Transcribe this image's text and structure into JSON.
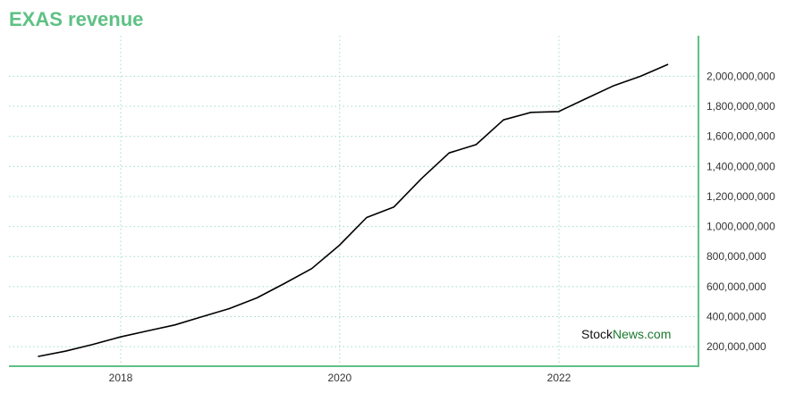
{
  "colors": {
    "accent": "#5ec184",
    "grid": "#9fdcc7",
    "line": "#000000",
    "watermark_dark": "#111111",
    "watermark_green": "#1a7a2e"
  },
  "watermark": {
    "part1": "Stock",
    "part2": "News",
    "part3": ".com"
  },
  "chart_data": {
    "type": "line",
    "title": "EXAS revenue",
    "xlabel": "",
    "ylabel": "",
    "x_ticks": [
      "2018",
      "2020",
      "2022"
    ],
    "y_ticks": [
      200000000,
      400000000,
      600000000,
      800000000,
      1000000000,
      1200000000,
      1400000000,
      1600000000,
      1800000000,
      2000000000
    ],
    "y_tick_labels": [
      "200,000,000",
      "400,000,000",
      "600,000,000",
      "800,000,000",
      "1,000,000,000",
      "1,200,000,000",
      "1,400,000,000",
      "1,600,000,000",
      "1,800,000,000",
      "2,000,000,000"
    ],
    "ylim": [
      70000000,
      2270000000
    ],
    "y_axis_position": "right",
    "grid": true,
    "series": [
      {
        "x": [
          "2017-03-31",
          "2017-06-30",
          "2017-09-30",
          "2017-12-31",
          "2018-03-31",
          "2018-06-30",
          "2018-09-30",
          "2018-12-31",
          "2019-03-31",
          "2019-06-30",
          "2019-09-30",
          "2019-12-31",
          "2020-03-31",
          "2020-06-30",
          "2020-09-30",
          "2020-12-31",
          "2021-03-31",
          "2021-06-30",
          "2021-09-30",
          "2021-12-31",
          "2022-03-31",
          "2022-06-30",
          "2022-09-30",
          "2022-12-31"
        ],
        "y": [
          135000000,
          170000000,
          215000000,
          265000000,
          305000000,
          345000000,
          400000000,
          455000000,
          525000000,
          620000000,
          720000000,
          875000000,
          1060000000,
          1130000000,
          1320000000,
          1490000000,
          1545000000,
          1710000000,
          1760000000,
          1765000000,
          1850000000,
          1935000000,
          2000000000,
          2080000000
        ]
      }
    ]
  }
}
